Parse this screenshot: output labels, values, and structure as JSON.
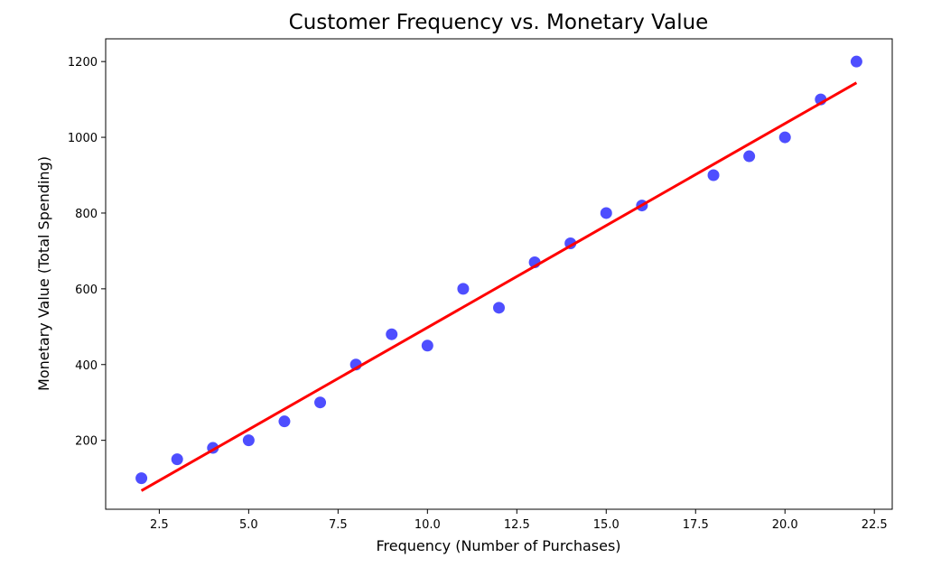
{
  "chart_data": {
    "type": "scatter",
    "title": "Customer Frequency vs. Monetary Value",
    "xlabel": "Frequency (Number of Purchases)",
    "ylabel": "Monetary Value (Total Spending)",
    "xlim": [
      1.0,
      23.0
    ],
    "ylim": [
      18,
      1260
    ],
    "xticks": [
      2.5,
      5.0,
      7.5,
      10.0,
      12.5,
      15.0,
      17.5,
      20.0,
      22.5
    ],
    "xtick_labels": [
      "2.5",
      "5.0",
      "7.5",
      "10.0",
      "12.5",
      "15.0",
      "17.5",
      "20.0",
      "22.5"
    ],
    "yticks": [
      200,
      400,
      600,
      800,
      1000,
      1200
    ],
    "ytick_labels": [
      "200",
      "400",
      "600",
      "800",
      "1000",
      "1200"
    ],
    "grid": false,
    "series": [
      {
        "type": "scatter",
        "color": "#4444ff",
        "x": [
          2,
          3,
          4,
          5,
          6,
          7,
          8,
          9,
          10,
          11,
          12,
          13,
          14,
          15,
          16,
          18,
          19,
          20,
          21,
          22
        ],
        "y": [
          100,
          150,
          180,
          200,
          250,
          300,
          400,
          480,
          450,
          600,
          550,
          670,
          720,
          800,
          820,
          900,
          950,
          1000,
          1100,
          1200
        ]
      },
      {
        "type": "line",
        "color": "#ff0000",
        "x": [
          2,
          22
        ],
        "y": [
          67,
          1144
        ]
      }
    ]
  }
}
